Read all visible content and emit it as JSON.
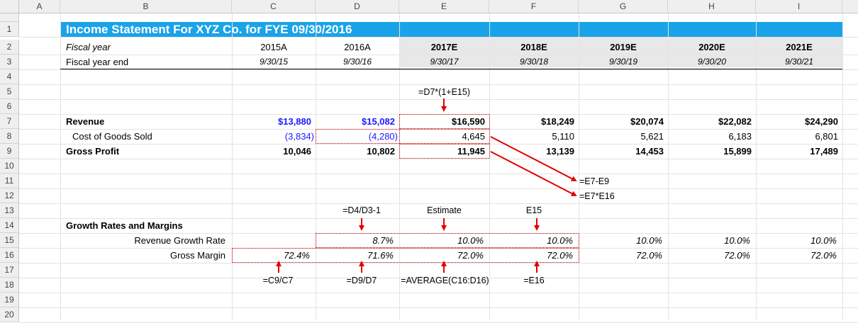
{
  "columns": [
    "A",
    "B",
    "C",
    "D",
    "E",
    "F",
    "G",
    "H",
    "I"
  ],
  "rows": [
    "1",
    "2",
    "3",
    "4",
    "5",
    "6",
    "7",
    "8",
    "9",
    "10",
    "11",
    "12",
    "13",
    "14",
    "15",
    "16",
    "17",
    "18",
    "19",
    "20"
  ],
  "title": "Income Statement For XYZ Co. for FYE 09/30/2016",
  "fiscal_year": {
    "label": "Fiscal year",
    "values": [
      "2015A",
      "2016A",
      "2017E",
      "2018E",
      "2019E",
      "2020E",
      "2021E"
    ]
  },
  "fiscal_year_end": {
    "label": "Fiscal year end",
    "values": [
      "9/30/15",
      "9/30/16",
      "9/30/17",
      "9/30/18",
      "9/30/19",
      "9/30/20",
      "9/30/21"
    ]
  },
  "revenue": {
    "label": "Revenue",
    "values": [
      "$13,880",
      "$15,082",
      "$16,590",
      "$18,249",
      "$20,074",
      "$22,082",
      "$24,290"
    ]
  },
  "cogs": {
    "label": "Cost of Goods Sold",
    "values": [
      "(3,834)",
      "(4,280)",
      "4,645",
      "5,110",
      "5,621",
      "6,183",
      "6,801"
    ]
  },
  "gross_profit": {
    "label": "Gross Profit",
    "values": [
      "10,046",
      "10,802",
      "11,945",
      "13,139",
      "14,453",
      "15,899",
      "17,489"
    ]
  },
  "growth_section": {
    "label": "Growth Rates and Margins"
  },
  "revenue_growth": {
    "label": "Revenue Growth Rate",
    "values": [
      "",
      "8.7%",
      "10.0%",
      "10.0%",
      "10.0%",
      "10.0%",
      "10.0%"
    ]
  },
  "gross_margin": {
    "label": "Gross Margin",
    "values": [
      "72.4%",
      "71.6%",
      "72.0%",
      "72.0%",
      "72.0%",
      "72.0%",
      "72.0%"
    ]
  },
  "annotations": {
    "e5": "=D7*(1+E15)",
    "e9_formula": "=E7-E9",
    "e12_formula": "=E7*E16",
    "d13": "=D4/D3-1",
    "e13": "Estimate",
    "f13": "E15",
    "c18": "=C9/C7",
    "d18": "=D9/D7",
    "e18": "=AVERAGE(C16:D16)",
    "f18": "=E16"
  },
  "colors": {
    "title_bg": "#1aa3e8",
    "input_blue": "#1a1aff",
    "arrow_red": "#e00000",
    "estimate_grey": "#e8e8e8"
  }
}
